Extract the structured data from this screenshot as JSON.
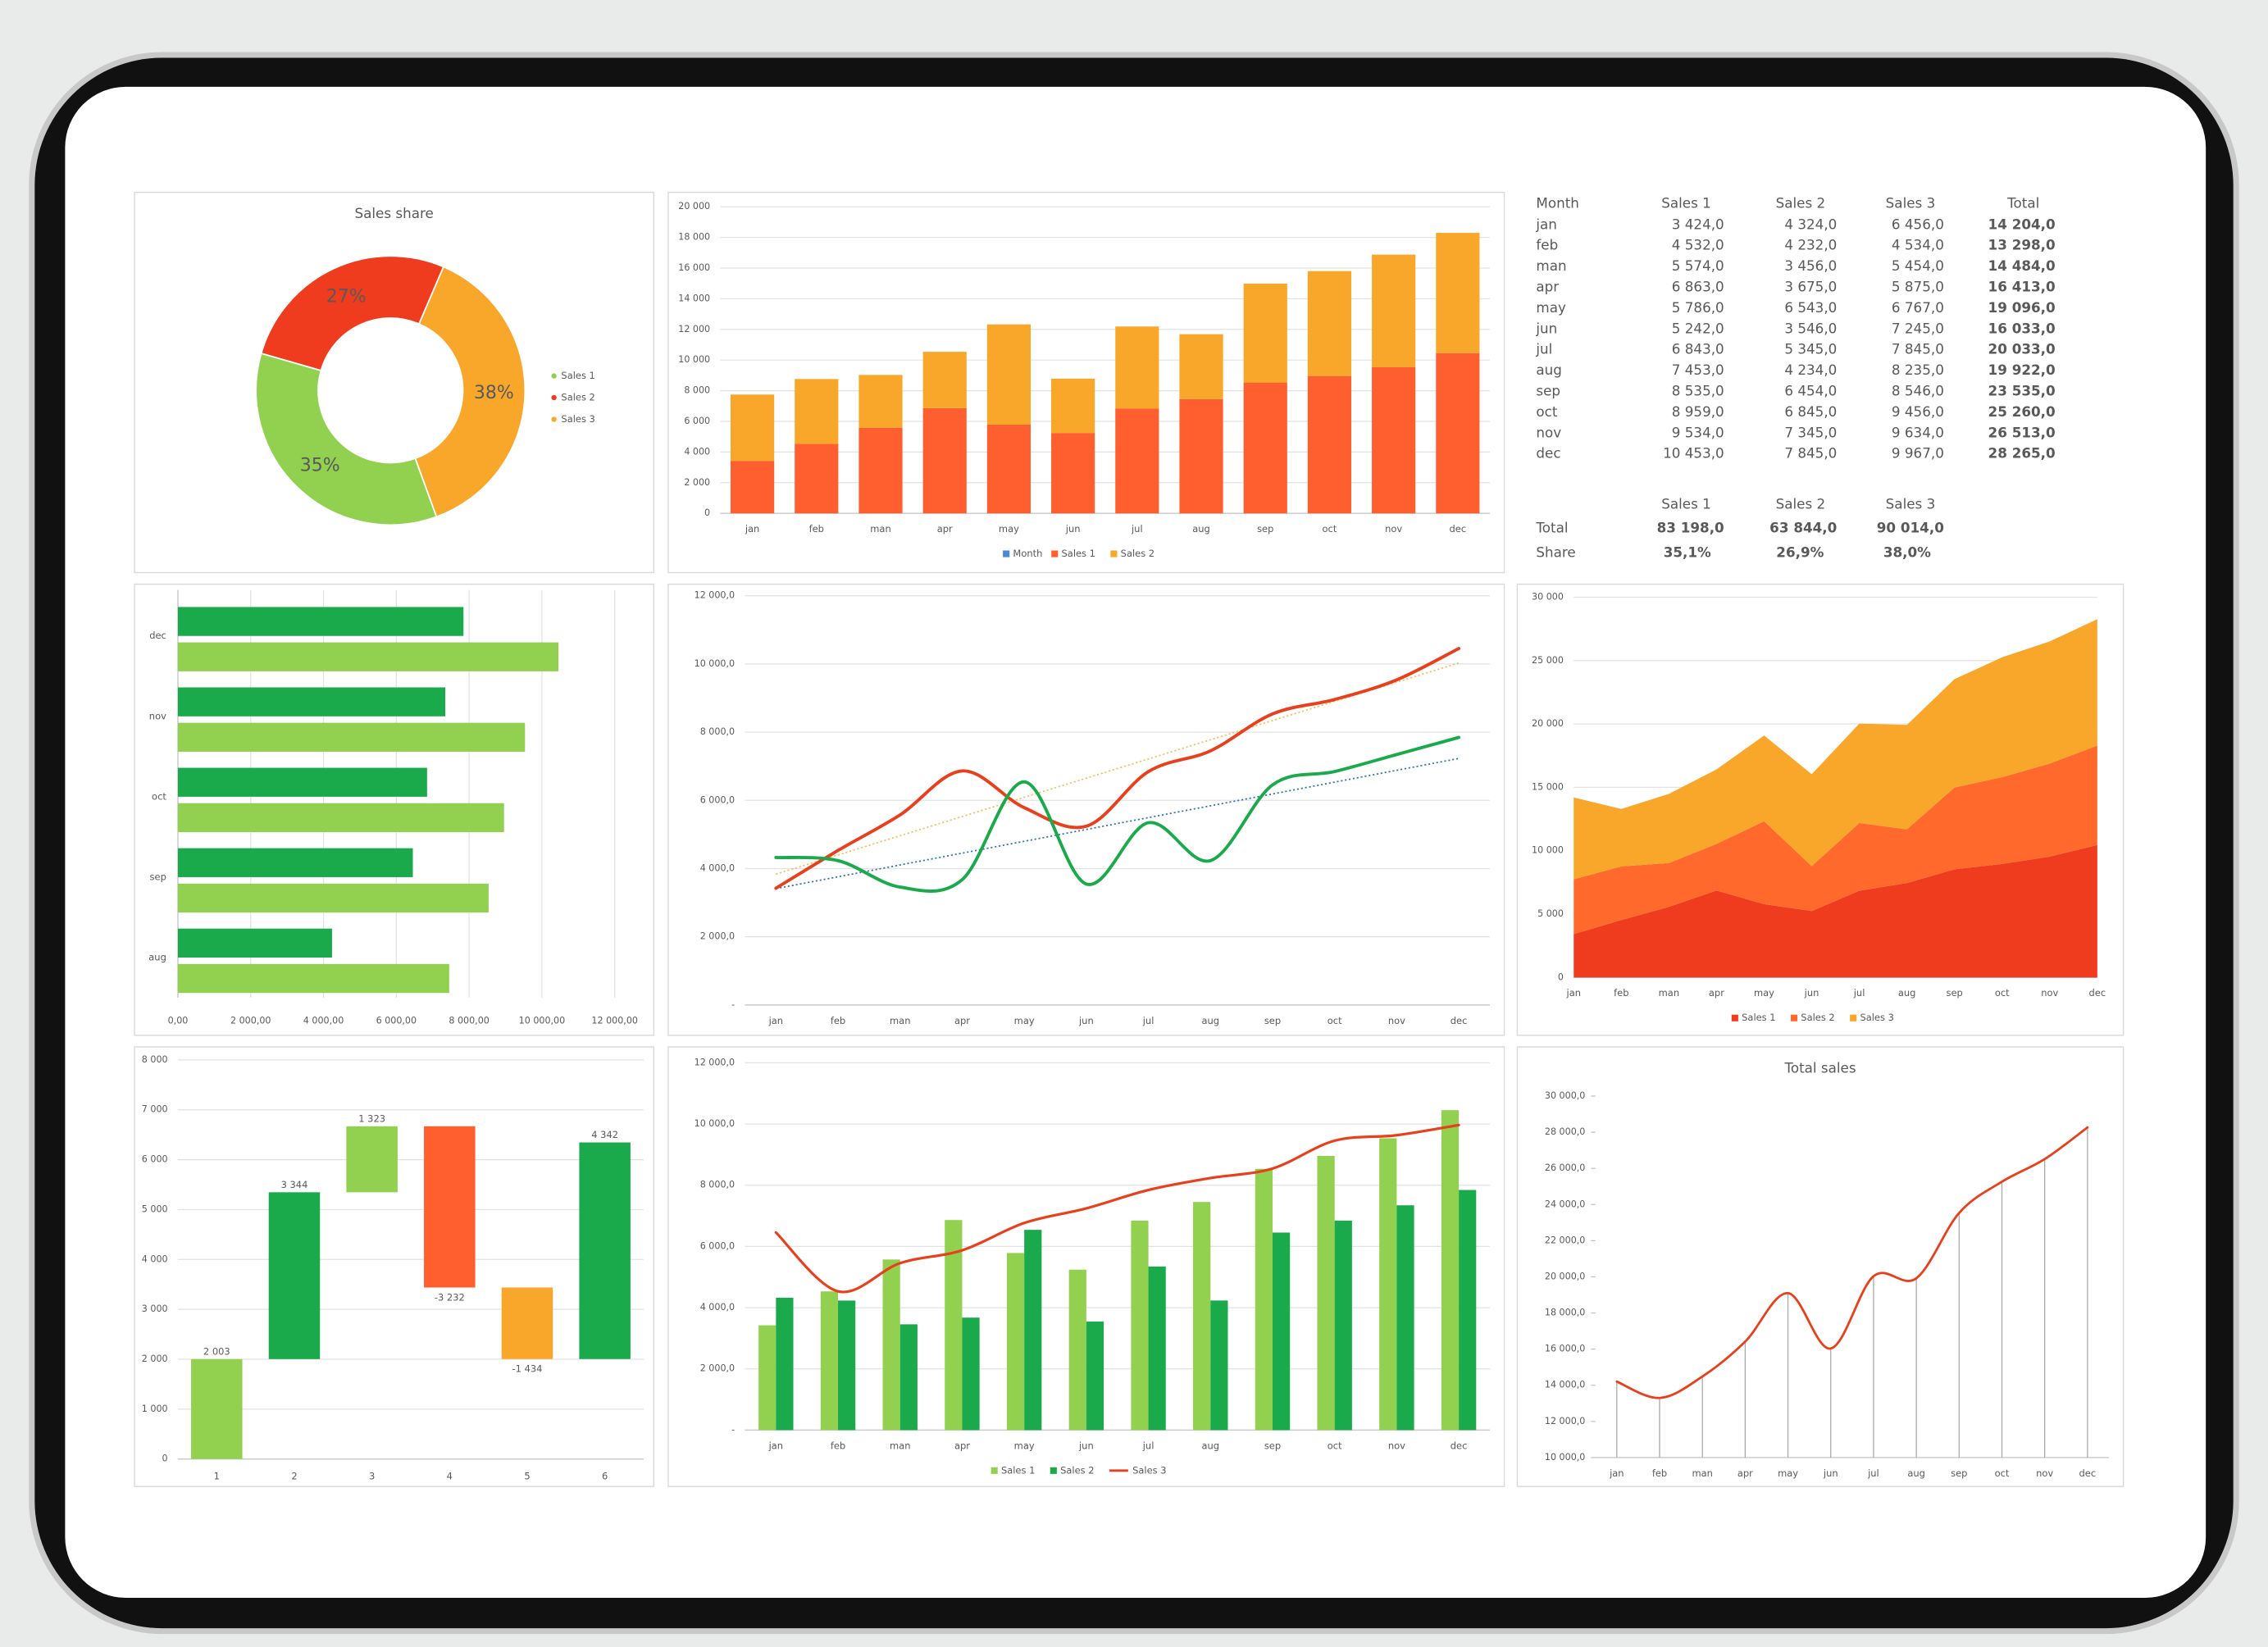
{
  "chart_data": [
    {
      "type": "donut",
      "title": "Sales share",
      "categories": [
        "Sales 1",
        "Sales 2",
        "Sales 3"
      ],
      "values": [
        35,
        27,
        38
      ],
      "value_labels": [
        "35%",
        "27%",
        "38%"
      ],
      "colors": [
        "#92d050",
        "#f03c1e",
        "#f9a72b"
      ],
      "legend": "right"
    },
    {
      "type": "bar",
      "stacked": true,
      "grid": true,
      "legend": "bottom",
      "categories": [
        "jan",
        "feb",
        "man",
        "apr",
        "may",
        "jun",
        "jul",
        "aug",
        "sep",
        "oct",
        "nov",
        "dec"
      ],
      "series": [
        {
          "name": "Month",
          "color": "#4a8ad6",
          "values": [
            null,
            null,
            null,
            null,
            null,
            null,
            null,
            null,
            null,
            null,
            null,
            null
          ]
        },
        {
          "name": "Sales 1",
          "color": "#ff5f2e",
          "values": [
            3424,
            4532,
            5574,
            6863,
            5786,
            5242,
            6843,
            7453,
            8535,
            8959,
            9534,
            10453
          ]
        },
        {
          "name": "Sales 2",
          "color": "#f9a72b",
          "values": [
            4324,
            4232,
            3456,
            3675,
            6543,
            3546,
            5345,
            4234,
            6454,
            6845,
            7345,
            7845
          ]
        }
      ],
      "ylim": [
        0,
        20000
      ],
      "yticks": [
        0,
        {
          "value": 2000,
          "label": "2 000"
        },
        {
          "value": 4000,
          "label": "4 000"
        },
        {
          "value": 6000,
          "label": "6 000"
        },
        {
          "value": 8000,
          "label": "8 000"
        },
        {
          "value": 10000,
          "label": "10 000"
        },
        {
          "value": 12000,
          "label": "12 000"
        },
        {
          "value": 14000,
          "label": "14 000"
        },
        {
          "value": 16000,
          "label": "16 000"
        },
        {
          "value": 18000,
          "label": "18 000"
        },
        {
          "value": 20000,
          "label": "20 000"
        }
      ]
    },
    {
      "type": "barh",
      "grid": true,
      "categories": [
        "aug",
        "sep",
        "oct",
        "nov",
        "dec"
      ],
      "series": [
        {
          "color": "#92d050",
          "values": [
            7453,
            8535,
            8959,
            9534,
            10453
          ]
        },
        {
          "color": "#1aaa4b",
          "values": [
            4234,
            6454,
            6845,
            7345,
            7845
          ]
        }
      ],
      "xlim": [
        0,
        12000
      ],
      "xticks": [
        {
          "value": 0,
          "label": "0,00"
        },
        {
          "value": 2000,
          "label": "2 000,00"
        },
        {
          "value": 4000,
          "label": "4 000,00"
        },
        {
          "value": 6000,
          "label": "6 000,00"
        },
        {
          "value": 8000,
          "label": "8 000,00"
        },
        {
          "value": 10000,
          "label": "10 000,00"
        },
        {
          "value": 12000,
          "label": "12 000,00"
        }
      ]
    },
    {
      "type": "line",
      "smooth": true,
      "trendline": true,
      "grid": true,
      "categories": [
        "jan",
        "feb",
        "man",
        "apr",
        "may",
        "jun",
        "jul",
        "aug",
        "sep",
        "oct",
        "nov",
        "dec"
      ],
      "series": [
        {
          "color": "#e8401c",
          "trend_color": "#f0c05a",
          "values": [
            3424,
            4532,
            5574,
            6863,
            5786,
            5242,
            6843,
            7453,
            8535,
            8959,
            9534,
            10453
          ]
        },
        {
          "color": "#1aaa4b",
          "trend_color": "#2e75b6",
          "values": [
            4324,
            4232,
            3456,
            3675,
            6543,
            3546,
            5345,
            4234,
            6454,
            6845,
            7345,
            7845
          ]
        }
      ],
      "ylim": [
        0,
        12000
      ],
      "yticks": [
        {
          "value": 0,
          "label": "-"
        },
        {
          "value": 2000,
          "label": "2 000,0"
        },
        {
          "value": 4000,
          "label": "4 000,0"
        },
        {
          "value": 6000,
          "label": "6 000,0"
        },
        {
          "value": 8000,
          "label": "8 000,0"
        },
        {
          "value": 10000,
          "label": "10 000,0"
        },
        {
          "value": 12000,
          "label": "12 000,0"
        }
      ]
    },
    {
      "type": "area",
      "stacked": true,
      "grid": true,
      "legend": "bottom",
      "categories": [
        "jan",
        "feb",
        "man",
        "apr",
        "may",
        "jun",
        "jul",
        "aug",
        "sep",
        "oct",
        "nov",
        "dec"
      ],
      "series": [
        {
          "name": "Sales 1",
          "color": "#f03c1e",
          "values": [
            3424,
            4532,
            5574,
            6863,
            5786,
            5242,
            6843,
            7453,
            8535,
            8959,
            9534,
            10453
          ]
        },
        {
          "name": "Sales 2",
          "color": "#ff6a2c",
          "values": [
            4324,
            4232,
            3456,
            3675,
            6543,
            3546,
            5345,
            4234,
            6454,
            6845,
            7345,
            7845
          ]
        },
        {
          "name": "Sales 3",
          "color": "#f9a72b",
          "values": [
            6456,
            4534,
            5454,
            5875,
            6767,
            7245,
            7845,
            8235,
            8546,
            9456,
            9634,
            9967
          ]
        }
      ],
      "ylim": [
        0,
        30000
      ],
      "yticks": [
        0,
        {
          "value": 5000,
          "label": "5 000"
        },
        {
          "value": 10000,
          "label": "10 000"
        },
        {
          "value": 15000,
          "label": "15 000"
        },
        {
          "value": 20000,
          "label": "20 000"
        },
        {
          "value": 25000,
          "label": "25 000"
        },
        {
          "value": 30000,
          "label": "30 000"
        }
      ]
    },
    {
      "type": "waterfall",
      "grid": true,
      "categories": [
        "1",
        "2",
        "3",
        "4",
        "5",
        "6"
      ],
      "values": [
        2003,
        3344,
        1323,
        -3232,
        -1434,
        4342
      ],
      "value_labels": [
        "2 003",
        "3 344",
        "1 323",
        "-3 232",
        "-1 434",
        "4 342"
      ],
      "colors": [
        "#92d050",
        "#1aaa4b",
        "#92d050",
        "#ff5f2e",
        "#f9a72b",
        "#1aaa4b"
      ],
      "ylim": [
        0,
        8000
      ],
      "yticks": [
        0,
        {
          "value": 1000,
          "label": "1 000"
        },
        {
          "value": 2000,
          "label": "2 000"
        },
        {
          "value": 3000,
          "label": "3 000"
        },
        {
          "value": 4000,
          "label": "4 000"
        },
        {
          "value": 5000,
          "label": "5 000"
        },
        {
          "value": 6000,
          "label": "6 000"
        },
        {
          "value": 7000,
          "label": "7 000"
        },
        {
          "value": 8000,
          "label": "8 000"
        }
      ]
    },
    {
      "type": "combo",
      "grid": true,
      "legend": "bottom",
      "categories": [
        "jan",
        "feb",
        "man",
        "apr",
        "may",
        "jun",
        "jul",
        "aug",
        "sep",
        "oct",
        "nov",
        "dec"
      ],
      "series": [
        {
          "name": "Sales 1",
          "kind": "bar",
          "color": "#92d050",
          "values": [
            3424,
            4532,
            5574,
            6863,
            5786,
            5242,
            6843,
            7453,
            8535,
            8959,
            9534,
            10453
          ]
        },
        {
          "name": "Sales 2",
          "kind": "bar",
          "color": "#1aaa4b",
          "values": [
            4324,
            4232,
            3456,
            3675,
            6543,
            3546,
            5345,
            4234,
            6454,
            6845,
            7345,
            7845
          ]
        },
        {
          "name": "Sales 3",
          "kind": "line",
          "smooth": true,
          "color": "#e8401c",
          "values": [
            6456,
            4534,
            5454,
            5875,
            6767,
            7245,
            7845,
            8235,
            8546,
            9456,
            9634,
            9967
          ]
        }
      ],
      "ylim": [
        0,
        12000
      ],
      "yticks": [
        {
          "value": 0,
          "label": "-"
        },
        {
          "value": 2000,
          "label": "2 000,0"
        },
        {
          "value": 4000,
          "label": "4 000,0"
        },
        {
          "value": 6000,
          "label": "6 000,0"
        },
        {
          "value": 8000,
          "label": "8 000,0"
        },
        {
          "value": 10000,
          "label": "10 000,0"
        },
        {
          "value": 12000,
          "label": "12 000,0"
        }
      ]
    },
    {
      "type": "line",
      "title": "Total sales",
      "smooth": true,
      "drop_lines": true,
      "grid": false,
      "categories": [
        "jan",
        "feb",
        "man",
        "apr",
        "may",
        "jun",
        "jul",
        "aug",
        "sep",
        "oct",
        "nov",
        "dec"
      ],
      "series": [
        {
          "color": "#e8401c",
          "values": [
            14204,
            13298,
            14484,
            16413,
            19096,
            16033,
            20033,
            19922,
            23535,
            25260,
            26513,
            28265
          ]
        }
      ],
      "ylim": [
        10000,
        30000
      ],
      "yticks": [
        {
          "value": 10000,
          "label": "10 000,0"
        },
        {
          "value": 12000,
          "label": "12 000,0"
        },
        {
          "value": 14000,
          "label": "14 000,0"
        },
        {
          "value": 16000,
          "label": "16 000,0"
        },
        {
          "value": 18000,
          "label": "18 000,0"
        },
        {
          "value": 20000,
          "label": "20 000,0"
        },
        {
          "value": 22000,
          "label": "22 000,0"
        },
        {
          "value": 24000,
          "label": "24 000,0"
        },
        {
          "value": 26000,
          "label": "26 000,0"
        },
        {
          "value": 28000,
          "label": "28 000,0"
        },
        {
          "value": 30000,
          "label": "30 000,0"
        }
      ]
    }
  ],
  "table": {
    "columns": [
      "Month",
      "Sales 1",
      "Sales 2",
      "Sales 3",
      "Total"
    ],
    "rows": [
      [
        "jan",
        "3 424,0",
        "4 324,0",
        "6 456,0",
        "14 204,0"
      ],
      [
        "feb",
        "4 532,0",
        "4 232,0",
        "4 534,0",
        "13 298,0"
      ],
      [
        "man",
        "5 574,0",
        "3 456,0",
        "5 454,0",
        "14 484,0"
      ],
      [
        "apr",
        "6 863,0",
        "3 675,0",
        "5 875,0",
        "16 413,0"
      ],
      [
        "may",
        "5 786,0",
        "6 543,0",
        "6 767,0",
        "19 096,0"
      ],
      [
        "jun",
        "5 242,0",
        "3 546,0",
        "7 245,0",
        "16 033,0"
      ],
      [
        "jul",
        "6 843,0",
        "5 345,0",
        "7 845,0",
        "20 033,0"
      ],
      [
        "aug",
        "7 453,0",
        "4 234,0",
        "8 235,0",
        "19 922,0"
      ],
      [
        "sep",
        "8 535,0",
        "6 454,0",
        "8 546,0",
        "23 535,0"
      ],
      [
        "oct",
        "8 959,0",
        "6 845,0",
        "9 456,0",
        "25 260,0"
      ],
      [
        "nov",
        "9 534,0",
        "7 345,0",
        "9 634,0",
        "26 513,0"
      ],
      [
        "dec",
        "10 453,0",
        "7 845,0",
        "9 967,0",
        "28 265,0"
      ]
    ],
    "summary": {
      "columns": [
        "Sales 1",
        "Sales 2",
        "Sales 3"
      ],
      "rows": [
        [
          "Total",
          "83 198,0",
          "63 844,0",
          "90 014,0"
        ],
        [
          "Share",
          "35,1%",
          "26,9%",
          "38,0%"
        ]
      ]
    }
  }
}
